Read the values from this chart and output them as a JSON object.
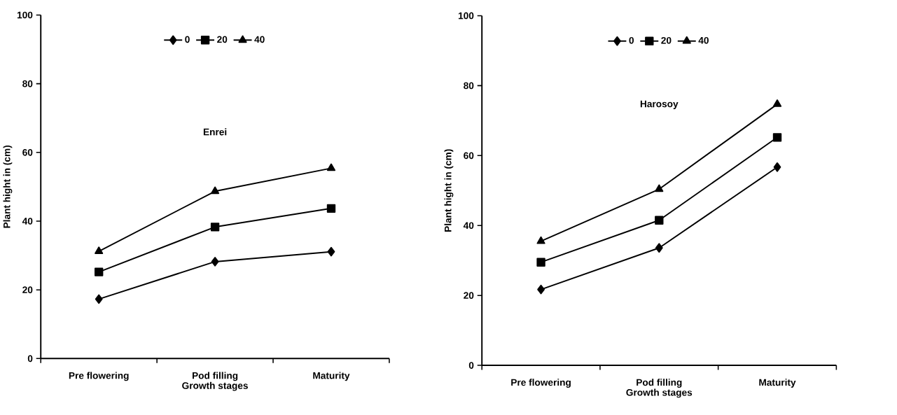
{
  "chart_data": [
    {
      "type": "line",
      "title": "Enrei",
      "xlabel": "Growth stages",
      "ylabel": "Plant hight in (cm)",
      "categories": [
        "Pre flowering",
        "Pod filling",
        "Maturity"
      ],
      "ylim": [
        0,
        100
      ],
      "yticks": [
        0,
        20,
        40,
        60,
        80,
        100
      ],
      "legend": "top",
      "line_style": "solid",
      "series": [
        {
          "name": "0",
          "color": "#000000",
          "marker": "diamond",
          "values": [
            17.3,
            28.2,
            31.1
          ]
        },
        {
          "name": "20",
          "color": "#000000",
          "marker": "square",
          "values": [
            25.2,
            38.3,
            43.7
          ]
        },
        {
          "name": "40",
          "color": "#000000",
          "marker": "triangle",
          "values": [
            31.2,
            48.7,
            55.4
          ]
        }
      ]
    },
    {
      "type": "line",
      "title": "Harosoy",
      "xlabel": "Growth stages",
      "ylabel": "Plant hight in (cm)",
      "categories": [
        "Pre flowering",
        "Pod filling",
        "Maturity"
      ],
      "ylim": [
        0,
        100
      ],
      "yticks": [
        0,
        20,
        40,
        60,
        80,
        100
      ],
      "legend": "top",
      "line_style": "solid",
      "series": [
        {
          "name": "0",
          "color": "#000000",
          "marker": "diamond",
          "values": [
            21.7,
            33.6,
            56.7
          ]
        },
        {
          "name": "20",
          "color": "#000000",
          "marker": "square",
          "values": [
            29.5,
            41.5,
            65.2
          ]
        },
        {
          "name": "40",
          "color": "#000000",
          "marker": "triangle",
          "values": [
            35.5,
            50.4,
            74.7
          ]
        }
      ]
    }
  ]
}
